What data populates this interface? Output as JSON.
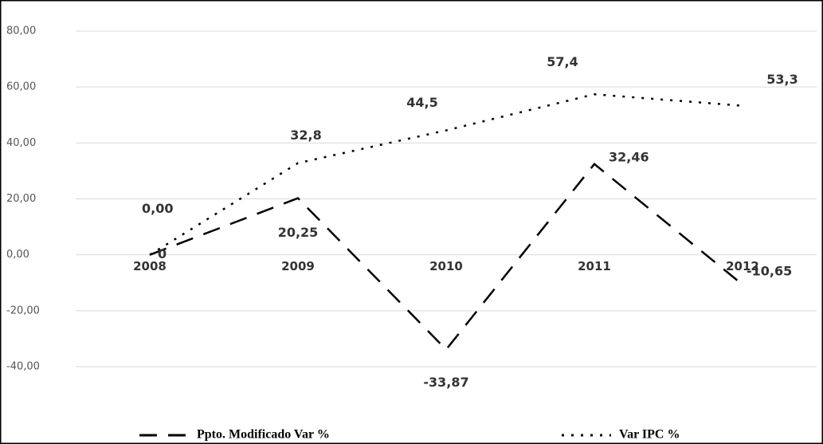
{
  "chart_data": {
    "type": "line",
    "categories": [
      "2008",
      "2009",
      "2010",
      "2011",
      "2012"
    ],
    "series": [
      {
        "name": "Ppto. Modificado Var %",
        "color": "#000000",
        "style": "dashed",
        "values": [
          0,
          20.25,
          -33.87,
          32.46,
          -10.65
        ],
        "value_labels": [
          "0",
          "20,25",
          "-33,87",
          "32,46",
          "-10,65"
        ]
      },
      {
        "name": "Var IPC %",
        "color": "#000000",
        "style": "dotted",
        "values": [
          0,
          32.8,
          44.5,
          57.4,
          53.3
        ],
        "value_labels": [
          "0,00",
          "32,8",
          "44,5",
          "57,4",
          "53,3"
        ]
      }
    ],
    "ylim": [
      -40,
      80
    ],
    "yticks": [
      {
        "value": -40,
        "label": "-40,00"
      },
      {
        "value": -20,
        "label": "-20,00"
      },
      {
        "value": 0,
        "label": "0,00"
      },
      {
        "value": 20,
        "label": "20,00"
      },
      {
        "value": 40,
        "label": "40,00"
      },
      {
        "value": 60,
        "label": "60,00"
      },
      {
        "value": 80,
        "label": "80,00"
      }
    ],
    "grid": true,
    "legend": "bottom"
  }
}
